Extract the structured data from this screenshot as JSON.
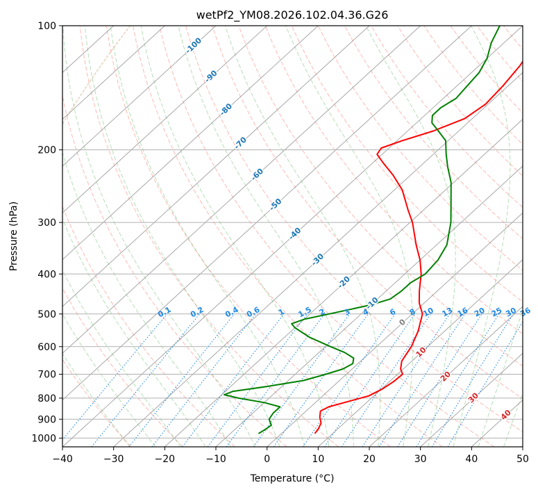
{
  "chart_data": {
    "type": "skew-t",
    "title": "wetPf2_YM08.2026.102.04.36.G26",
    "xlabel": "Temperature (°C)",
    "ylabel": "Pressure (hPa)",
    "xlim": [
      -40,
      50
    ],
    "ylim": [
      1050,
      100
    ],
    "x_ticks": [
      -40,
      -30,
      -20,
      -10,
      0,
      10,
      20,
      30,
      40,
      50
    ],
    "x_tick_labels": [
      "−40",
      "−30",
      "−20",
      "−10",
      "0",
      "10",
      "20",
      "30",
      "40",
      "50"
    ],
    "y_ticks": [
      100,
      200,
      300,
      400,
      500,
      600,
      700,
      800,
      900,
      1000
    ],
    "y_tick_labels": [
      "100",
      "200",
      "300",
      "400",
      "500",
      "600",
      "700",
      "800",
      "900",
      "1000"
    ],
    "isotherm_labels": [
      {
        "t": -100,
        "p": 112,
        "text": "-100"
      },
      {
        "t": -90,
        "p": 133,
        "text": "-90"
      },
      {
        "t": -80,
        "p": 160,
        "text": "-80"
      },
      {
        "t": -70,
        "p": 193,
        "text": "-70"
      },
      {
        "t": -60,
        "p": 230,
        "text": "-60"
      },
      {
        "t": -50,
        "p": 272,
        "text": "-50"
      },
      {
        "t": -40,
        "p": 320,
        "text": "-40"
      },
      {
        "t": -30,
        "p": 370,
        "text": "-30"
      },
      {
        "t": -20,
        "p": 420,
        "text": "-20"
      },
      {
        "t": -10,
        "p": 472,
        "text": "-10"
      },
      {
        "t": 0,
        "p": 525,
        "text": "0"
      },
      {
        "t": 10,
        "p": 620,
        "text": "10"
      },
      {
        "t": 20,
        "p": 710,
        "text": "20"
      },
      {
        "t": 30,
        "p": 800,
        "text": "30"
      },
      {
        "t": 40,
        "p": 880,
        "text": "40"
      }
    ],
    "mixing_ratio_labels": [
      "0.1",
      "0.2",
      "0.4",
      "0.6",
      "1",
      "1.5",
      "2",
      "3",
      "4",
      "6",
      "8",
      "10",
      "13",
      "16",
      "20",
      "25",
      "30",
      "36"
    ],
    "mixing_ratio_values": [
      0.1,
      0.2,
      0.4,
      0.6,
      1,
      1.5,
      2,
      3,
      4,
      6,
      8,
      10,
      13,
      16,
      20,
      25,
      30,
      36
    ],
    "series": [
      {
        "name": "temperature",
        "color": "#ff0000",
        "points": [
          {
            "p": 975,
            "t": 6.5
          },
          {
            "p": 950,
            "t": 6.2
          },
          {
            "p": 920,
            "t": 5.5
          },
          {
            "p": 890,
            "t": 4.0
          },
          {
            "p": 860,
            "t": 2.8
          },
          {
            "p": 840,
            "t": 3.5
          },
          {
            "p": 815,
            "t": 6.2
          },
          {
            "p": 790,
            "t": 9.0
          },
          {
            "p": 760,
            "t": 10.2
          },
          {
            "p": 730,
            "t": 10.8
          },
          {
            "p": 700,
            "t": 11.0
          },
          {
            "p": 680,
            "t": 9.5
          },
          {
            "p": 650,
            "t": 8.0
          },
          {
            "p": 600,
            "t": 6.8
          },
          {
            "p": 550,
            "t": 4.8
          },
          {
            "p": 500,
            "t": 2.0
          },
          {
            "p": 470,
            "t": -1.0
          },
          {
            "p": 440,
            "t": -3.5
          },
          {
            "p": 400,
            "t": -6.8
          },
          {
            "p": 370,
            "t": -10.0
          },
          {
            "p": 340,
            "t": -14.0
          },
          {
            "p": 300,
            "t": -19.5
          },
          {
            "p": 280,
            "t": -23.0
          },
          {
            "p": 250,
            "t": -28.5
          },
          {
            "p": 230,
            "t": -33.5
          },
          {
            "p": 215,
            "t": -38.0
          },
          {
            "p": 205,
            "t": -41.0
          },
          {
            "p": 198,
            "t": -41.5
          },
          {
            "p": 190,
            "t": -39.0
          },
          {
            "p": 180,
            "t": -35.0
          },
          {
            "p": 168,
            "t": -31.5
          },
          {
            "p": 155,
            "t": -30.5
          },
          {
            "p": 140,
            "t": -31.0
          },
          {
            "p": 125,
            "t": -32.0
          },
          {
            "p": 113,
            "t": -33.5
          },
          {
            "p": 106,
            "t": -35.5
          },
          {
            "p": 100,
            "t": -37.0
          }
        ]
      },
      {
        "name": "dewpoint",
        "color": "#008000",
        "points": [
          {
            "p": 975,
            "t": -4.5
          },
          {
            "p": 950,
            "t": -4.0
          },
          {
            "p": 930,
            "t": -3.8
          },
          {
            "p": 900,
            "t": -5.5
          },
          {
            "p": 870,
            "t": -6.0
          },
          {
            "p": 840,
            "t": -6.0
          },
          {
            "p": 820,
            "t": -10.0
          },
          {
            "p": 800,
            "t": -16.0
          },
          {
            "p": 785,
            "t": -19.5
          },
          {
            "p": 770,
            "t": -18.5
          },
          {
            "p": 750,
            "t": -13.0
          },
          {
            "p": 725,
            "t": -7.0
          },
          {
            "p": 700,
            "t": -4.0
          },
          {
            "p": 680,
            "t": -1.8
          },
          {
            "p": 660,
            "t": -1.0
          },
          {
            "p": 640,
            "t": -2.0
          },
          {
            "p": 620,
            "t": -5.0
          },
          {
            "p": 600,
            "t": -9.0
          },
          {
            "p": 570,
            "t": -15.0
          },
          {
            "p": 540,
            "t": -20.0
          },
          {
            "p": 528,
            "t": -21.5
          },
          {
            "p": 515,
            "t": -20.0
          },
          {
            "p": 495,
            "t": -15.0
          },
          {
            "p": 475,
            "t": -10.0
          },
          {
            "p": 460,
            "t": -7.5
          },
          {
            "p": 440,
            "t": -7.0
          },
          {
            "p": 420,
            "t": -7.0
          },
          {
            "p": 400,
            "t": -6.0
          },
          {
            "p": 370,
            "t": -6.5
          },
          {
            "p": 340,
            "t": -8.0
          },
          {
            "p": 300,
            "t": -12.0
          },
          {
            "p": 270,
            "t": -16.0
          },
          {
            "p": 240,
            "t": -20.5
          },
          {
            "p": 220,
            "t": -24.5
          },
          {
            "p": 205,
            "t": -27.5
          },
          {
            "p": 190,
            "t": -30.5
          },
          {
            "p": 180,
            "t": -34.0
          },
          {
            "p": 172,
            "t": -37.0
          },
          {
            "p": 165,
            "t": -38.5
          },
          {
            "p": 158,
            "t": -38.5
          },
          {
            "p": 150,
            "t": -37.5
          },
          {
            "p": 140,
            "t": -38.0
          },
          {
            "p": 130,
            "t": -38.5
          },
          {
            "p": 120,
            "t": -40.0
          },
          {
            "p": 110,
            "t": -42.5
          },
          {
            "p": 100,
            "t": -44.5
          }
        ]
      }
    ]
  },
  "colors": {
    "isotherm_label": "#1f77b4",
    "mixing_line": "#1e88e5",
    "dry_adiabat": "#fa8072",
    "moist_adiabat": "#2ca02c",
    "zero_line": "#808080",
    "warm_label": "#d62728",
    "tan_curve": "#d2b48c"
  }
}
